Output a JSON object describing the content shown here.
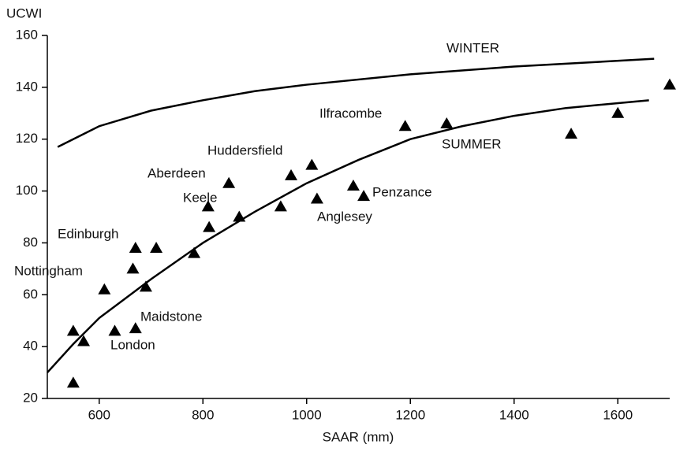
{
  "chart_data": {
    "type": "scatter",
    "xlabel": "SAAR (mm)",
    "ylabel": "UCWI",
    "xlim": [
      500,
      1700
    ],
    "ylim": [
      20,
      160
    ],
    "xticks": [
      600,
      800,
      1000,
      1200,
      1400,
      1600
    ],
    "yticks": [
      20,
      40,
      60,
      80,
      100,
      120,
      140,
      160
    ],
    "color": "#000000",
    "points": {
      "x": [
        550,
        570,
        550,
        610,
        630,
        670,
        665,
        670,
        690,
        710,
        783,
        810,
        812,
        850,
        870,
        950,
        970,
        1010,
        1020,
        1090,
        1110,
        1190,
        1270,
        1510,
        1600,
        1700
      ],
      "y": [
        46,
        42,
        26,
        62,
        46,
        47,
        70,
        78,
        63,
        78,
        76,
        94,
        86,
        103,
        90,
        94,
        106,
        110,
        97,
        102,
        98,
        125,
        126,
        122,
        130,
        141
      ]
    },
    "annotations": [
      "Ilfracombe",
      "Huddersfield",
      "Aberdeen",
      "Keele",
      "Edinburgh",
      "Nottingham",
      "Maidstone",
      "London",
      "Penzance",
      "Anglesey"
    ],
    "series": [
      {
        "name": "WINTER",
        "color": "#000000",
        "x": [
          520,
          550,
          600,
          700,
          800,
          900,
          1000,
          1200,
          1400,
          1670
        ],
        "values": [
          117,
          120,
          125,
          131,
          135,
          138.5,
          141,
          145,
          148,
          151
        ]
      },
      {
        "name": "SUMMER",
        "color": "#000000",
        "x": [
          500,
          550,
          600,
          700,
          800,
          900,
          1000,
          1100,
          1200,
          1300,
          1400,
          1500,
          1660
        ],
        "values": [
          30,
          41,
          51,
          66,
          80,
          92,
          103,
          112,
          120,
          125,
          129,
          132,
          135
        ]
      }
    ]
  }
}
